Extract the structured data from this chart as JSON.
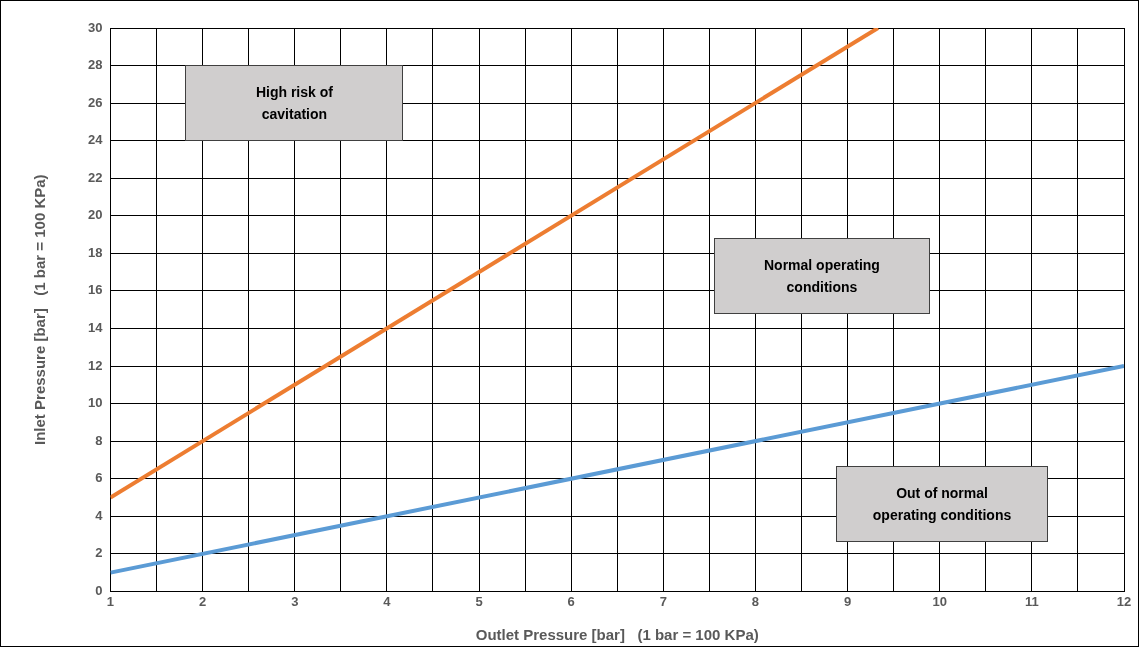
{
  "chart_data": {
    "type": "line",
    "xlabel": "Outlet Pressure [bar]   (1 bar = 100 KPa)",
    "ylabel": "Inlet Pressure [bar]   (1 bar = 100 KPa)",
    "series": [
      {
        "color": "#ed7d31",
        "x": [
          1,
          9.33
        ],
        "values": [
          5,
          30
        ]
      },
      {
        "color": "#5b9bd5",
        "x": [
          1,
          12
        ],
        "values": [
          1,
          12
        ]
      }
    ],
    "xlim": [
      1,
      12
    ],
    "xticks": [
      1,
      {
        "value": 1.5,
        "label": null
      },
      2,
      {
        "value": 2.5,
        "label": null
      },
      3,
      {
        "value": 3.5,
        "label": null
      },
      4,
      {
        "value": 4.5,
        "label": null
      },
      5,
      {
        "value": 5.5,
        "label": null
      },
      6,
      {
        "value": 6.5,
        "label": null
      },
      7,
      {
        "value": 7.5,
        "label": null
      },
      8,
      {
        "value": 8.5,
        "label": null
      },
      9,
      {
        "value": 9.5,
        "label": null
      },
      10,
      {
        "value": 10.5,
        "label": null
      },
      11,
      {
        "value": 11.5,
        "label": null
      },
      12
    ],
    "ylim": [
      0,
      30
    ],
    "yticks": [
      0,
      2,
      4,
      6,
      8,
      10,
      12,
      14,
      16,
      18,
      20,
      22,
      24,
      26,
      28,
      30
    ],
    "grid": true,
    "legend": false,
    "marker": "none",
    "line_style": "solid",
    "annotations": [
      "High risk of cavitation",
      "Normal operating conditions",
      "Out of normal operating conditions"
    ]
  }
}
